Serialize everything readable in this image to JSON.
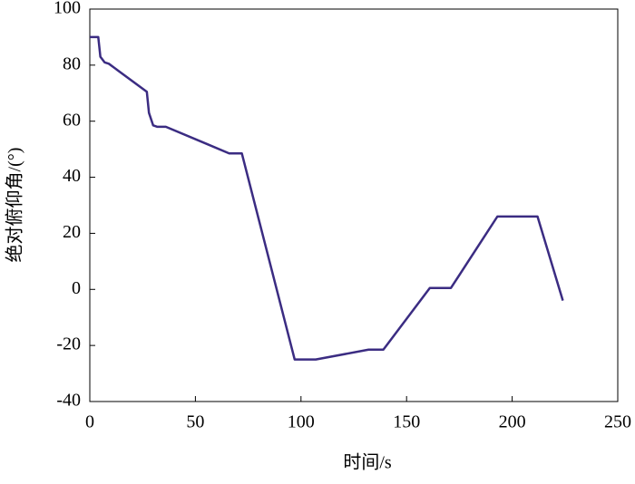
{
  "chart_data": {
    "type": "line",
    "x_label": "时间/s",
    "y_label": "绝对俯仰角/(°)",
    "x": [
      0,
      4,
      5,
      7,
      9,
      27,
      28,
      30,
      32,
      36,
      55,
      66,
      72,
      97,
      107,
      132,
      139,
      161,
      171,
      193,
      212,
      224
    ],
    "series": [
      {
        "color": "#3b2c82",
        "values": [
          90,
          90,
          83,
          81,
          80.5,
          70.5,
          63,
          58.5,
          58,
          58,
          52,
          48.5,
          48.5,
          -25,
          -25,
          -21.5,
          -21.5,
          0.5,
          0.5,
          26,
          26,
          -4
        ]
      }
    ],
    "xlim": [
      0,
      250
    ],
    "xticks": [
      0,
      50,
      100,
      150,
      200,
      250
    ],
    "ylim": [
      -40,
      100
    ],
    "yticks": [
      -40,
      -20,
      0,
      20,
      40,
      60,
      80,
      100
    ]
  }
}
